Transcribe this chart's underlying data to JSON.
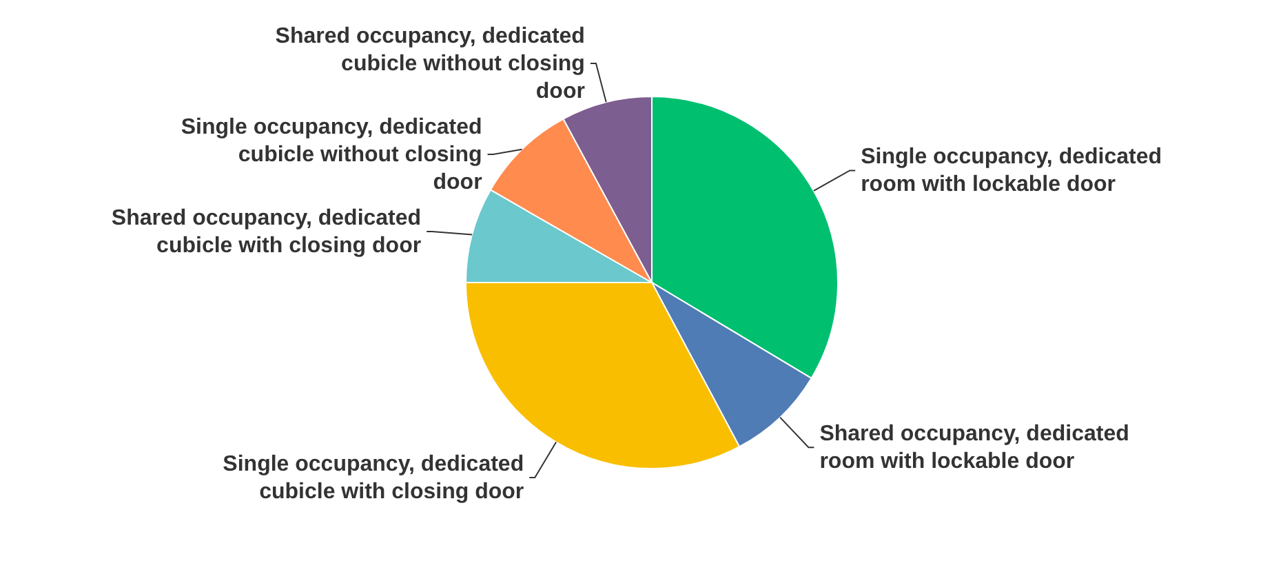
{
  "chart_data": {
    "type": "pie",
    "categories": [
      "Single occupancy, dedicated room with lockable door",
      "Shared occupancy, dedicated room with lockable door",
      "Single occupancy, dedicated cubicle with closing door",
      "Shared occupancy, dedicated cubicle with closing door",
      "Single occupancy, dedicated cubicle without closing door",
      "Shared occupancy, dedicated cubicle without closing door"
    ],
    "values": [
      33.6,
      8.6,
      32.8,
      8.3,
      8.8,
      7.9
    ],
    "colors": [
      "#00bf6f",
      "#507cb6",
      "#f9be00",
      "#6bc8cd",
      "#ff8b4f",
      "#7d5e90"
    ]
  }
}
